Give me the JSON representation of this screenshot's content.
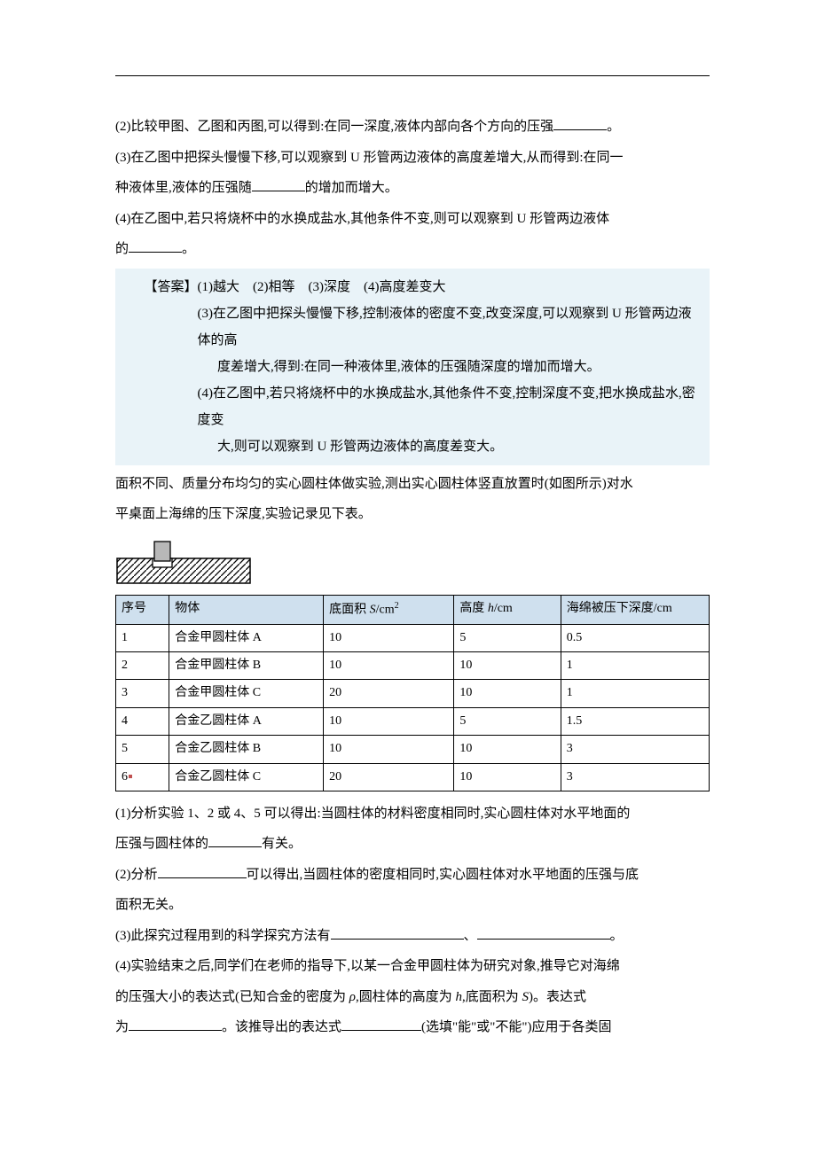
{
  "questions": {
    "q2": "(2)比较甲图、乙图和丙图,可以得到:在同一深度,液体内部向各个方向的压强",
    "q2_tail": "。",
    "q3a": "(3)在乙图中把探头慢慢下移,可以观察到 U 形管两边液体的高度差增大,从而得到:在同一",
    "q3b": "种液体里,液体的压强随",
    "q3b_tail": "的增加而增大。",
    "q4a": "(4)在乙图中,若只将烧杯中的水换成盐水,其他条件不变,则可以观察到 U 形管两边液体",
    "q4b": "的",
    "q4b_tail": "。"
  },
  "answer": {
    "line1": "【答案】(1)越大　(2)相等　(3)深度　(4)高度差变大",
    "line3a": "(3)在乙图中把探头慢慢下移,控制液体的密度不变,改变深度,可以观察到 U 形管两边液体的高",
    "line3b": "度差增大,得到:在同一种液体里,液体的压强随深度的增加而增大。",
    "line4a": "(4)在乙图中,若只将烧杯中的水换成盐水,其他条件不变,控制深度不变,把水换成盐水,密度变",
    "line4b": "大,则可以观察到 U 形管两边液体的高度差变大。"
  },
  "intro": {
    "l1": "面积不同、质量分布均匀的实心圆柱体做实验,测出实心圆柱体竖直放置时(如图所示)对水",
    "l2": "平桌面上海绵的压下深度,实验记录见下表。"
  },
  "table": {
    "headers": [
      "序号",
      "物体",
      "底面积 S/cm",
      "高度 h/cm",
      "海绵被压下深度/cm"
    ],
    "header_s_sup": "2",
    "rows": [
      [
        "1",
        "合金甲圆柱体 A",
        "10",
        "5",
        "0.5"
      ],
      [
        "2",
        "合金甲圆柱体 B",
        "10",
        "10",
        "1"
      ],
      [
        "3",
        "合金甲圆柱体 C",
        "20",
        "10",
        "1"
      ],
      [
        "4",
        "合金乙圆柱体 A",
        "10",
        "5",
        "1.5"
      ],
      [
        "5",
        "合金乙圆柱体 B",
        "10",
        "10",
        "3"
      ],
      [
        "6",
        "合金乙圆柱体 C",
        "20",
        "10",
        "3"
      ]
    ],
    "col_widths": [
      "9%",
      "26%",
      "22%",
      "18%",
      "25%"
    ],
    "header_bg": "#cfe0ee",
    "border_color": "#000000"
  },
  "lower": {
    "q1a": "(1)分析实验 1、2 或 4、5 可以得出:当圆柱体的材料密度相同时,实心圆柱体对水平地面的",
    "q1b": "压强与圆柱体的",
    "q1b_tail": "有关。",
    "q2a": "(2)分析",
    "q2a_tail": "可以得出,当圆柱体的密度相同时,实心圆柱体对水平地面的压强与底",
    "q2b": "面积无关。",
    "q3": "(3)此探究过程用到的科学探究方法有",
    "q3_mid": "、",
    "q3_tail": "。",
    "q4a": "(4)实验结束之后,同学们在老师的指导下,以某一合金甲圆柱体为研究对象,推导它对海绵",
    "q4b_pre": "的压强大小的表达式(已知合金的密度为 ",
    "q4b_rho": "ρ",
    "q4b_mid1": ",圆柱体的高度为 ",
    "q4b_h": "h",
    "q4b_mid2": ",底面积为 ",
    "q4b_S": "S",
    "q4b_post": ")。表达式",
    "q4c": "为",
    "q4c_mid": "。该推导出的表达式",
    "q4c_tail": "(选填\"能\"或\"不能\")应用于各类固"
  }
}
